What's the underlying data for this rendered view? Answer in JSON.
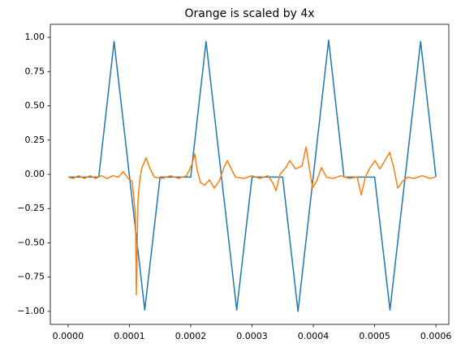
{
  "chart_data": {
    "type": "line",
    "title": "Orange is scaled by 4x",
    "xlim": [
      -2.9e-05,
      0.000621
    ],
    "ylim": [
      -1.095,
      1.095
    ],
    "xticks": [
      {
        "value": 0,
        "label": "0.0000"
      },
      {
        "value": 0.0001,
        "label": "0.0001"
      },
      {
        "value": 0.0002,
        "label": "0.0002"
      },
      {
        "value": 0.0003,
        "label": "0.0003"
      },
      {
        "value": 0.0004,
        "label": "0.0004"
      },
      {
        "value": 0.0005,
        "label": "0.0005"
      },
      {
        "value": 0.0006,
        "label": "0.0006"
      }
    ],
    "yticks": [
      {
        "value": -1,
        "label": "−1.00"
      },
      {
        "value": -0.75,
        "label": "−0.75"
      },
      {
        "value": -0.5,
        "label": "−0.50"
      },
      {
        "value": -0.25,
        "label": "−0.25"
      },
      {
        "value": 0,
        "label": "0.00"
      },
      {
        "value": 0.25,
        "label": "0.25"
      },
      {
        "value": 0.5,
        "label": "0.50"
      },
      {
        "value": 0.75,
        "label": "0.75"
      },
      {
        "value": 1,
        "label": "1.00"
      }
    ],
    "grid": false,
    "series": [
      {
        "color": "#1f77b4",
        "x": [
          0,
          5e-05,
          7.5e-05,
          0.000125,
          0.00015,
          0.0002,
          0.000225,
          0.000275,
          0.0003,
          0.00035,
          0.000375,
          0.000425,
          0.00045,
          0.0005,
          0.000525,
          0.000575,
          0.0006
        ],
        "values": [
          -0.02,
          -0.02,
          0.97,
          -0.99,
          -0.02,
          -0.02,
          0.97,
          -0.99,
          -0.02,
          -0.02,
          -1.0,
          0.98,
          -0.02,
          -0.02,
          -0.99,
          0.97,
          -0.02
        ]
      },
      {
        "color": "#ff7f0e",
        "x": [
          0,
          7.9e-06,
          1.72e-05,
          2.65e-05,
          3.58e-05,
          4.5e-05,
          5.43e-05,
          6.36e-05,
          7.28e-05,
          8.21e-05,
          9.01e-05,
          9.8e-05,
          0.0001046,
          0.0001099,
          0.0001113,
          0.0001139,
          0.0001166,
          0.0001205,
          0.0001272,
          0.0001338,
          0.0001404,
          0.0001536,
          0.0001669,
          0.0001801,
          0.0001934,
          0.0002026,
          0.0002066,
          0.0002106,
          0.0002159,
          0.0002225,
          0.0002305,
          0.0002384,
          0.0002464,
          0.0002543,
          0.0002596,
          0.0002662,
          0.0002728,
          0.0002861,
          0.0002993,
          0.0003126,
          0.0003258,
          0.0003338,
          0.0003391,
          0.0003457,
          0.000355,
          0.0003616,
          0.0003709,
          0.0003815,
          0.0003881,
          0.0003934,
          0.0003987,
          0.0004053,
          0.0004132,
          0.0004212,
          0.0004318,
          0.000445,
          0.0004583,
          0.0004715,
          0.0004781,
          0.0004848,
          0.0004927,
          0.0005007,
          0.0005086,
          0.0005166,
          0.0005245,
          0.0005311,
          0.0005377,
          0.0005457,
          0.0005536,
          0.0005642,
          0.0005775,
          0.0005907,
          0.0005987
        ],
        "values": [
          -0.02,
          -0.03,
          -0.01,
          -0.03,
          -0.01,
          -0.03,
          -0.01,
          -0.03,
          -0.01,
          -0.02,
          0.02,
          -0.03,
          -0.05,
          -0.3,
          -0.88,
          -0.2,
          -0.05,
          0.05,
          0.12,
          0.04,
          -0.02,
          -0.03,
          -0.01,
          -0.03,
          -0.01,
          0.08,
          0.15,
          0.03,
          -0.06,
          -0.08,
          -0.04,
          -0.1,
          -0.05,
          0.05,
          0.1,
          0.04,
          -0.02,
          -0.03,
          -0.01,
          -0.03,
          -0.01,
          -0.06,
          -0.12,
          0.0,
          0.05,
          0.1,
          0.04,
          0.06,
          0.2,
          0.05,
          -0.1,
          -0.05,
          0.05,
          -0.02,
          -0.03,
          -0.01,
          -0.03,
          -0.02,
          -0.15,
          -0.02,
          0.05,
          0.1,
          0.04,
          0.1,
          0.16,
          0.05,
          -0.1,
          -0.05,
          -0.02,
          -0.03,
          -0.01,
          -0.03,
          -0.02
        ]
      }
    ]
  }
}
